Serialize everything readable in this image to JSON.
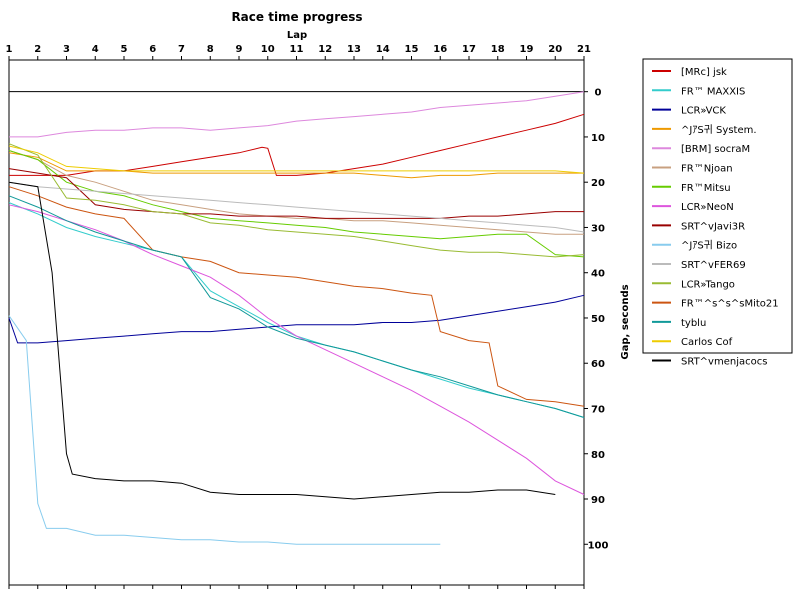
{
  "chart_data": {
    "type": "line",
    "title": "Race time progress",
    "xlabel": "Lap",
    "ylabel": "Gap, seconds",
    "x_ticks": [
      1,
      2,
      3,
      4,
      5,
      6,
      7,
      8,
      9,
      10,
      11,
      12,
      13,
      14,
      15,
      16,
      17,
      18,
      19,
      20,
      21
    ],
    "y_ticks": [
      0,
      10,
      20,
      30,
      40,
      50,
      60,
      70,
      80,
      90,
      100
    ],
    "xlim": [
      1,
      21
    ],
    "ylim": [
      -7,
      109
    ],
    "y_inverted": true,
    "grid": false,
    "legend_position": "right",
    "series": [
      {
        "name": "[MRc] jsk",
        "color": "#cc0000",
        "x": [
          1,
          2,
          3,
          4,
          5,
          6,
          7,
          8,
          9,
          9.8,
          10,
          10.3,
          11,
          12,
          13,
          14,
          15,
          16,
          17,
          18,
          19,
          20,
          21
        ],
        "y": [
          18.5,
          18.5,
          18.5,
          17.5,
          17.5,
          16.5,
          15.5,
          14.5,
          13.5,
          12.3,
          12.5,
          18.5,
          18.5,
          18,
          17,
          16,
          14.5,
          13,
          11.5,
          10,
          8.5,
          7,
          5
        ]
      },
      {
        "name": "FR™ MAXXIS",
        "color": "#33cccc",
        "x": [
          1,
          2,
          3,
          4,
          5,
          6,
          7,
          8,
          9,
          10,
          11,
          12,
          13,
          14,
          15,
          16,
          17,
          18,
          19,
          20,
          21
        ],
        "y": [
          24.5,
          27,
          30,
          32,
          33.5,
          35,
          36.5,
          44,
          47.5,
          51,
          54,
          56,
          57.5,
          59.5,
          61.5,
          63.5,
          65.5,
          67,
          68.5,
          70,
          72
        ]
      },
      {
        "name": "LCR»VCK",
        "color": "#000099",
        "x": [
          1,
          1.3,
          2,
          3,
          4,
          5,
          6,
          7,
          8,
          9,
          10,
          11,
          12,
          13,
          14,
          15,
          16,
          17,
          18,
          19,
          20,
          21
        ],
        "y": [
          50,
          55.5,
          55.5,
          55,
          54.5,
          54,
          53.5,
          53,
          53,
          52.5,
          52,
          51.5,
          51.5,
          51.5,
          51,
          51,
          50.5,
          49.5,
          48.5,
          47.5,
          46.5,
          45
        ]
      },
      {
        "name": "^JｱS귀 System.",
        "color": "#ee9900",
        "x": [
          1,
          2,
          3,
          4,
          5,
          6,
          7,
          8,
          9,
          10,
          11,
          12,
          13,
          14,
          15,
          16,
          17,
          18,
          19,
          20,
          21
        ],
        "y": [
          13.5,
          14.5,
          17.5,
          17.5,
          17.5,
          18,
          18,
          18,
          18,
          18,
          18,
          18,
          18,
          18.5,
          19,
          18.5,
          18.5,
          18,
          18,
          18,
          18
        ]
      },
      {
        "name": "[BRM] socraM",
        "color": "#dd88dd",
        "x": [
          1,
          2,
          3,
          4,
          5,
          6,
          7,
          8,
          9,
          10,
          11,
          12,
          13,
          14,
          15,
          16,
          17,
          18,
          19,
          20,
          21
        ],
        "y": [
          10,
          10,
          9,
          8.5,
          8.5,
          8,
          8,
          8.5,
          8,
          7.5,
          6.5,
          6,
          5.5,
          5,
          4.5,
          3.5,
          3,
          2.5,
          2,
          1,
          0
        ]
      },
      {
        "name": "FR™Njoan",
        "color": "#c8a080",
        "x": [
          1,
          2,
          3,
          4,
          5,
          6,
          7,
          8,
          9,
          10,
          11,
          12,
          13,
          14,
          15,
          16,
          17,
          18,
          19,
          20,
          21
        ],
        "y": [
          13,
          15,
          18.5,
          20,
          22,
          24,
          25,
          26,
          27,
          27.5,
          28,
          28,
          28.5,
          28.5,
          29,
          29.5,
          30,
          30.5,
          31,
          31.5,
          31.5
        ]
      },
      {
        "name": "FR™Mitsu",
        "color": "#66cc00",
        "x": [
          1,
          2,
          3,
          4,
          5,
          6,
          7,
          8,
          9,
          10,
          11,
          12,
          13,
          14,
          15,
          16,
          17,
          18,
          19,
          20,
          21
        ],
        "y": [
          13,
          15,
          20,
          22,
          23,
          25,
          26.5,
          28,
          28.5,
          29,
          29.5,
          30,
          31,
          31.5,
          32,
          32.5,
          32,
          31.5,
          31.5,
          36,
          36.5
        ]
      },
      {
        "name": "LCR»NeoN",
        "color": "#dd55dd",
        "x": [
          1,
          2,
          3,
          4,
          5,
          6,
          7,
          8,
          9,
          10,
          11,
          12,
          13,
          14,
          15,
          16,
          17,
          18,
          19,
          20,
          21
        ],
        "y": [
          25,
          26.5,
          28.5,
          30.5,
          33,
          36,
          38.5,
          41,
          45,
          50,
          54,
          57,
          60,
          63,
          66,
          69.5,
          73,
          77,
          81,
          86,
          89
        ]
      },
      {
        "name": "SRT^vJavi3R",
        "color": "#990000",
        "x": [
          1,
          2,
          3,
          4,
          5,
          6,
          7,
          8,
          9,
          10,
          11,
          12,
          13,
          14,
          15,
          16,
          17,
          18,
          19,
          20,
          21
        ],
        "y": [
          17,
          18,
          19,
          25,
          26,
          26.5,
          27,
          27,
          27.5,
          27.5,
          27.5,
          28,
          28,
          28,
          28,
          28,
          27.5,
          27.5,
          27,
          26.5,
          26.5
        ]
      },
      {
        "name": "^JｱS귀 Bizo",
        "color": "#88ccee",
        "x": [
          1,
          1.6,
          2,
          2.3,
          3,
          4,
          5,
          6,
          7,
          8,
          9,
          10,
          11,
          12,
          13,
          14,
          15,
          16
        ],
        "y": [
          49.5,
          55,
          91,
          96.5,
          96.5,
          98,
          98,
          98.5,
          99,
          99,
          99.5,
          99.5,
          100,
          100,
          100,
          100,
          100,
          100
        ]
      },
      {
        "name": "SRT^vFER69",
        "color": "#bbbbbb",
        "x": [
          1,
          2,
          3,
          4,
          5,
          6,
          7,
          8,
          9,
          10,
          11,
          12,
          13,
          14,
          15,
          16,
          17,
          18,
          19,
          20,
          21
        ],
        "y": [
          20,
          21,
          21.5,
          22,
          22.5,
          23,
          23.5,
          24,
          24.5,
          25,
          25.5,
          26,
          26.5,
          27,
          27.5,
          28,
          28.5,
          29,
          29.5,
          30,
          31
        ]
      },
      {
        "name": "LCR»Tango",
        "color": "#99bb33",
        "x": [
          1,
          2,
          3,
          4,
          5,
          6,
          7,
          8,
          9,
          10,
          11,
          12,
          13,
          14,
          15,
          16,
          17,
          18,
          19,
          20,
          21
        ],
        "y": [
          11.5,
          14,
          23.5,
          24,
          25,
          26.5,
          27,
          29,
          29.5,
          30.5,
          31,
          31.5,
          32,
          33,
          34,
          35,
          35.5,
          35.5,
          36,
          36.5,
          36
        ]
      },
      {
        "name": "FR™^s^s^sMito21",
        "color": "#cc5511",
        "x": [
          1,
          2,
          3,
          4,
          5,
          6,
          7,
          8,
          9,
          10,
          11,
          12,
          13,
          14,
          15,
          15.7,
          16,
          17,
          17.7,
          18,
          19,
          20,
          21
        ],
        "y": [
          21,
          23,
          25.5,
          27,
          28,
          35,
          36.5,
          37.5,
          40,
          40.5,
          41,
          42,
          43,
          43.5,
          44.5,
          45,
          53,
          55,
          55.5,
          65,
          68,
          68.5,
          69.5
        ]
      },
      {
        "name": "tyblu",
        "color": "#119999",
        "x": [
          1,
          2,
          3,
          4,
          5,
          6,
          7,
          8,
          9,
          10,
          11,
          12,
          13,
          14,
          15,
          16,
          17,
          18,
          19,
          20,
          21
        ],
        "y": [
          23,
          25.5,
          28.5,
          31,
          33,
          35,
          36.5,
          45.5,
          48,
          52,
          54.5,
          56,
          57.5,
          59.5,
          61.5,
          63,
          65,
          67,
          68.5,
          70,
          72
        ]
      },
      {
        "name": "Carlos Cof",
        "color": "#eecc00",
        "x": [
          1,
          2,
          3,
          4,
          5,
          6,
          7,
          8,
          9,
          10,
          11,
          12,
          13,
          14,
          15,
          16,
          17,
          18,
          19,
          20,
          21
        ],
        "y": [
          12,
          13.5,
          16.5,
          17,
          17.5,
          17.5,
          17.5,
          17.5,
          17.5,
          17.5,
          17.5,
          17.5,
          17.5,
          17.5,
          17.5,
          17.5,
          17.5,
          17.5,
          17.5,
          17.5,
          18
        ]
      },
      {
        "name": "SRT^vmenjacocs",
        "color": "#000000",
        "x": [
          1,
          2,
          2.5,
          3,
          3.2,
          4,
          5,
          6,
          7,
          8,
          9,
          10,
          11,
          12,
          13,
          14,
          15,
          16,
          17,
          18,
          19,
          20
        ],
        "y": [
          20,
          21,
          40,
          80,
          84.5,
          85.5,
          86,
          86,
          86.5,
          88.5,
          89,
          89,
          89,
          89.5,
          90,
          89.5,
          89,
          88.5,
          88.5,
          88,
          88,
          89
        ]
      }
    ]
  }
}
